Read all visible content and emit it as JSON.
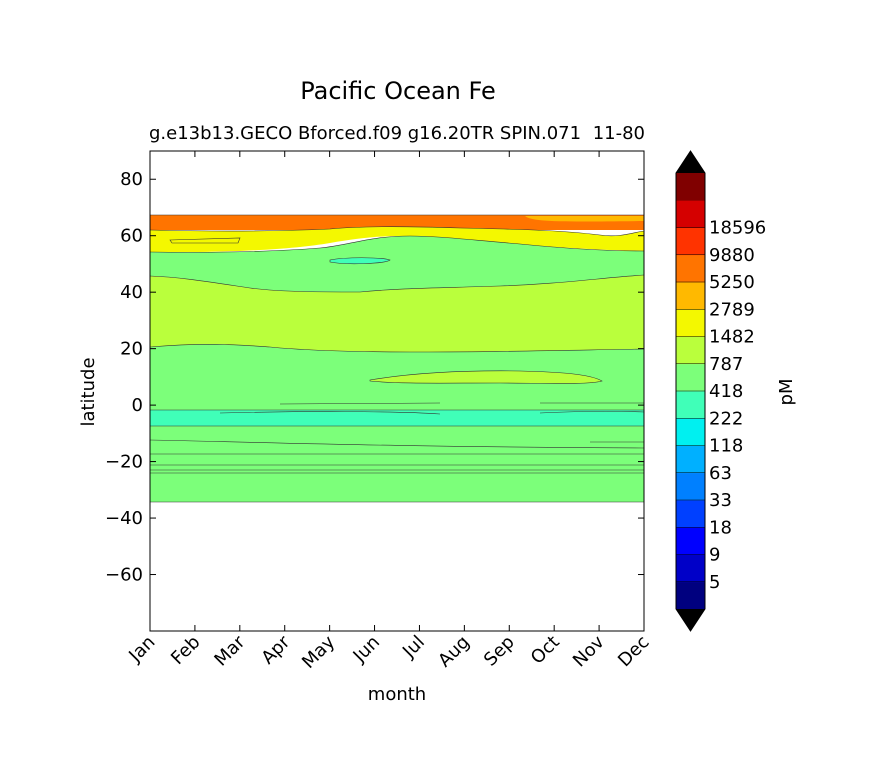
{
  "chart_data": {
    "type": "contour",
    "title": "Pacific Ocean Fe",
    "subtitle_left": "g.e13b13.GECO Bforced.f09 g16.20TR SPIN.071",
    "subtitle_right": "11-80",
    "xlabel": "month",
    "ylabel": "latitude",
    "x_tick_labels": [
      "Jan",
      "Feb",
      "Mar",
      "Apr",
      "May",
      "Jun",
      "Jul",
      "Aug",
      "Sep",
      "Oct",
      "Nov",
      "Dec"
    ],
    "xlim": [
      0,
      11
    ],
    "ylim": [
      -80,
      90
    ],
    "y_ticks": [
      80,
      60,
      40,
      20,
      0,
      -20,
      -40,
      -60
    ],
    "y_tick_labels": [
      "80",
      "60",
      "40",
      "20",
      "0",
      "−20",
      "−40",
      "−60"
    ],
    "colorbar": {
      "label": "pM",
      "extend": "both",
      "levels": [
        5,
        9,
        18,
        33,
        63,
        118,
        222,
        418,
        787,
        1482,
        2789,
        5250,
        9880,
        18596
      ],
      "level_labels": [
        "5",
        "9",
        "18",
        "33",
        "63",
        "118",
        "222",
        "418",
        "787",
        "1482",
        "2789",
        "5250",
        "9880",
        "18596"
      ],
      "colors": [
        "#00007f",
        "#0000c8",
        "#0000ff",
        "#0040ff",
        "#0080ff",
        "#00b0ff",
        "#00f0f0",
        "#40ffb8",
        "#7cff7a",
        "#baff3c",
        "#f4f800",
        "#ffb900",
        "#ff7400",
        "#ff3300",
        "#d50000",
        "#800000"
      ],
      "under_color": "#000000",
      "over_color": "#000000"
    },
    "data_extent_lat": [
      -34,
      67
    ],
    "bands": [
      {
        "lat_from": 62,
        "lat_to": 67,
        "value_range": "2789-5250",
        "color": "#ff7400"
      },
      {
        "lat_from": 56,
        "lat_to": 62,
        "value_range": "787-1482",
        "color": "#f4f800"
      },
      {
        "lat_from": 45,
        "lat_to": 56,
        "value_range": "222-418",
        "color": "#7cff7a"
      },
      {
        "lat_from": 20,
        "lat_to": 45,
        "value_range": "418-787",
        "color": "#baff3c"
      },
      {
        "lat_from": -3,
        "lat_to": 20,
        "value_range": "222-418",
        "color": "#7cff7a"
      },
      {
        "lat_from": -7,
        "lat_to": -3,
        "value_range": "118-222",
        "color": "#40ffb8"
      },
      {
        "lat_from": -34,
        "lat_to": -7,
        "value_range": "222-418",
        "color": "#7cff7a"
      }
    ]
  }
}
